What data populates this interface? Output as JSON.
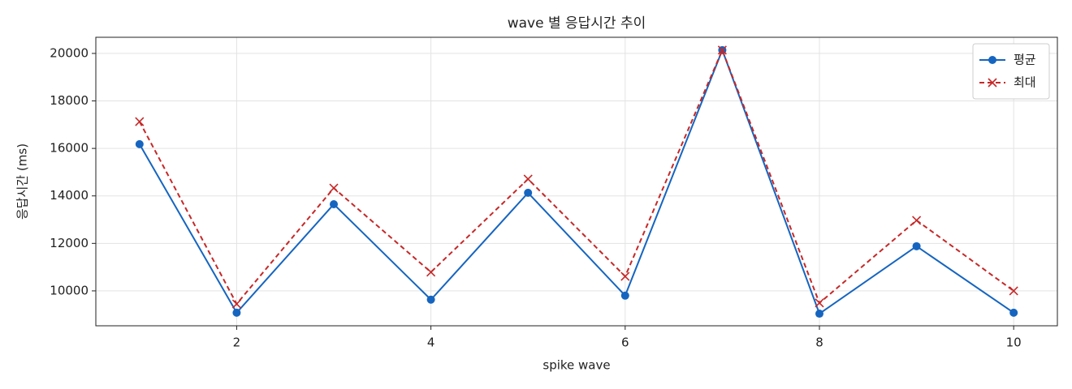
{
  "chart_data": {
    "type": "line",
    "title": "wave 별 응답시간 추이",
    "x_label": "spike wave",
    "y_label": "응답시간 (ms)",
    "x": [
      1,
      2,
      3,
      4,
      5,
      6,
      7,
      8,
      9,
      10
    ],
    "series": [
      {
        "name": "평균",
        "color": "#1565c0",
        "marker": "o",
        "dash": false,
        "values": [
          16180,
          9080,
          13650,
          9630,
          14130,
          9800,
          20140,
          9040,
          11880,
          9080
        ]
      },
      {
        "name": "최대",
        "color": "#c62828",
        "marker": "x",
        "dash": true,
        "values": [
          17130,
          9450,
          14330,
          10790,
          14710,
          10610,
          20140,
          9490,
          12970,
          10000
        ]
      }
    ],
    "xlim": [
      0.55,
      10.45
    ],
    "xticks": [
      2,
      4,
      6,
      8,
      10
    ],
    "ylim": [
      8530,
      20680
    ],
    "yticks": [
      10000,
      12000,
      14000,
      16000,
      18000,
      20000
    ],
    "grid": true,
    "legend": "upper right"
  }
}
